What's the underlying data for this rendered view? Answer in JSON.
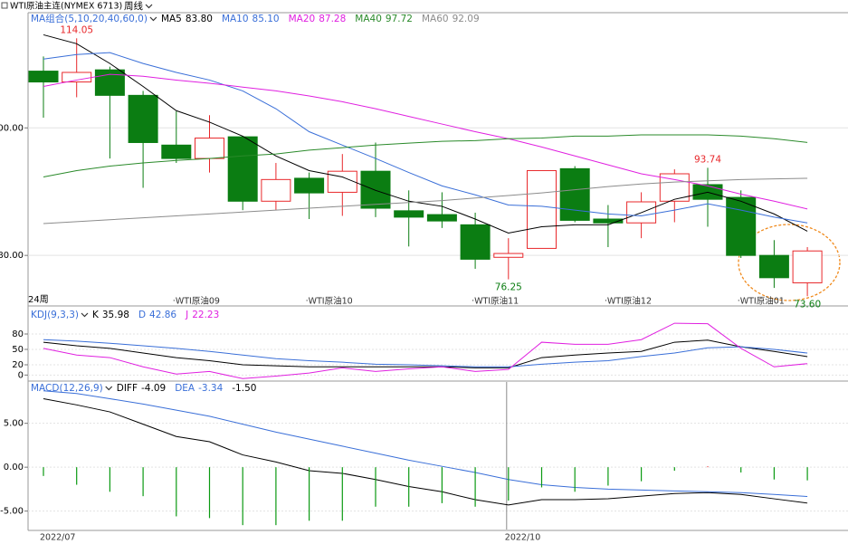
{
  "header": {
    "title": "WTI原油主连(NYMEX 6713)",
    "period": "周线"
  },
  "chart_data": [
    {
      "type": "candlestick",
      "legend_title": "MA组合(5,10,20,40,60,0)",
      "period_count": "24周",
      "categories": [
        null,
        null,
        null,
        null,
        "·WTI原油09",
        null,
        null,
        null,
        "·WTI原油10",
        null,
        null,
        null,
        null,
        "·WTI原油11",
        null,
        null,
        null,
        "·WTI原油12",
        null,
        null,
        null,
        "·WTI原油01",
        null,
        null
      ],
      "open": [
        108.9,
        107.2,
        109.1,
        105.1,
        97.3,
        95.2,
        98.6,
        88.5,
        92.1,
        89.9,
        93.2,
        87.0,
        86.4,
        84.8,
        79.7,
        81.1,
        93.6,
        85.7,
        85.1,
        88.5,
        91.1,
        89.1,
        80.0,
        75.7
      ],
      "high": [
        111.2,
        114.05,
        109.6,
        105.8,
        102.6,
        102.0,
        98.7,
        94.5,
        93.0,
        95.9,
        97.7,
        90.2,
        89.9,
        86.7,
        82.7,
        93.3,
        94.0,
        87.9,
        89.9,
        93.5,
        93.74,
        90.2,
        82.4,
        81.3
      ],
      "low": [
        101.6,
        104.8,
        95.2,
        90.6,
        94.5,
        93.0,
        87.1,
        87.1,
        85.7,
        86.2,
        86.0,
        81.4,
        84.3,
        77.9,
        76.25,
        81.1,
        85.2,
        81.3,
        82.7,
        85.2,
        84.5,
        79.6,
        74.9,
        73.6
      ],
      "close": [
        107.2,
        108.7,
        105.1,
        97.7,
        95.2,
        98.4,
        88.5,
        91.9,
        89.8,
        93.2,
        87.4,
        86.0,
        85.4,
        79.4,
        80.3,
        93.3,
        85.5,
        85.1,
        88.4,
        92.8,
        88.8,
        80.0,
        76.5,
        80.7
      ],
      "up_color": "#e8282b",
      "down_color": "#0b7d12",
      "ylim": [
        72.5,
        117.5
      ],
      "yticks": [
        {
          "value": 100,
          "label": "100.00"
        },
        {
          "value": 80,
          "label": "80.00"
        }
      ],
      "grid": true,
      "series": [
        {
          "name": "MA5",
          "legend_value": "83.80",
          "color": "#000000",
          "values": [
            114.6,
            113.2,
            110.1,
            106.5,
            102.7,
            100.9,
            98.7,
            95.6,
            93.3,
            92.3,
            90.2,
            88.5,
            87.7,
            85.7,
            83.5,
            84.5,
            84.8,
            84.8,
            86.7,
            88.8,
            89.9,
            88.5,
            86.5,
            83.8
          ]
        },
        {
          "name": "MA10",
          "legend_value": "85.10",
          "color": "#3a6fd8",
          "values": [
            110.8,
            111.5,
            111.8,
            110.1,
            108.7,
            107.5,
            105.8,
            103.0,
            99.4,
            97.3,
            95.2,
            93.0,
            90.9,
            89.5,
            87.9,
            87.7,
            87.1,
            86.5,
            86.2,
            87.1,
            88.1,
            87.1,
            86.0,
            85.1
          ]
        },
        {
          "name": "MA20",
          "legend_value": "87.28",
          "color": "#e020e0",
          "values": [
            106.5,
            107.5,
            108.4,
            108.1,
            107.5,
            107.0,
            106.4,
            105.8,
            105.0,
            104.1,
            103.0,
            101.8,
            100.6,
            99.4,
            98.3,
            97.0,
            95.6,
            94.2,
            92.8,
            91.9,
            90.9,
            89.6,
            88.5,
            87.28
          ]
        },
        {
          "name": "MA40",
          "legend_value": "97.72",
          "color": "#2a8a2a",
          "values": [
            92.3,
            93.3,
            94.0,
            94.5,
            94.9,
            95.2,
            95.6,
            95.9,
            96.5,
            96.9,
            97.3,
            97.6,
            97.9,
            98.0,
            98.3,
            98.4,
            98.7,
            98.7,
            98.9,
            98.9,
            98.9,
            98.7,
            98.3,
            97.72
          ]
        },
        {
          "name": "MA60",
          "legend_value": "92.09",
          "color": "#8c8c8c",
          "values": [
            85.0,
            85.3,
            85.6,
            85.9,
            86.2,
            86.5,
            86.8,
            87.1,
            87.4,
            87.7,
            88.0,
            88.3,
            88.6,
            89.0,
            89.4,
            89.8,
            90.3,
            90.8,
            91.2,
            91.5,
            91.7,
            91.9,
            92.0,
            92.09
          ]
        }
      ],
      "annotations": [
        {
          "label": "114.05",
          "index": 1,
          "at": "high",
          "color": "#e8282b"
        },
        {
          "label": "76.25",
          "index": 14,
          "at": "low",
          "color": "#0b7d12"
        },
        {
          "label": "93.74",
          "index": 20,
          "at": "high",
          "color": "#e8282b"
        },
        {
          "label": "73.60",
          "index": 23,
          "at": "low",
          "color": "#0b7d12"
        }
      ]
    },
    {
      "type": "line",
      "legend_title": "KDJ(9,3,3)",
      "ylim": [
        -10,
        110
      ],
      "yticks": [
        80,
        50,
        20,
        0
      ],
      "grid": true,
      "series": [
        {
          "name": "K",
          "legend_value": "35.98",
          "color": "#000000",
          "values": [
            64,
            57,
            52,
            43,
            34,
            28,
            20,
            18,
            16,
            16,
            16,
            16,
            16,
            14,
            14,
            34,
            39,
            43,
            46,
            64,
            68,
            55,
            46,
            35.98
          ]
        },
        {
          "name": "D",
          "legend_value": "42.86",
          "color": "#3a6fd8",
          "values": [
            69,
            66,
            62,
            57,
            52,
            46,
            39,
            32,
            28,
            25,
            21,
            20,
            18,
            16,
            16,
            21,
            25,
            28,
            36,
            43,
            53,
            55,
            50,
            42.86
          ]
        },
        {
          "name": "J",
          "legend_value": "22.23",
          "color": "#e020e0",
          "values": [
            52,
            39,
            34,
            16,
            2,
            7,
            -7,
            -2,
            4,
            14,
            7,
            12,
            16,
            7,
            11,
            64,
            60,
            60,
            69,
            101,
            100,
            52,
            16,
            22.23
          ]
        }
      ]
    },
    {
      "type": "line",
      "legend_title": "MACD(12,26,9)",
      "categories": [
        "2022/07",
        null,
        null,
        null,
        null,
        null,
        null,
        null,
        null,
        null,
        null,
        null,
        null,
        null,
        "2022/10",
        null,
        null,
        null,
        null,
        null,
        null,
        null,
        null,
        null
      ],
      "ylim": [
        -7.1,
        9.4
      ],
      "yticks": [
        {
          "value": 5,
          "label": "5.00"
        },
        {
          "value": 0,
          "label": "0.00"
        },
        {
          "value": -5,
          "label": "-5.00"
        }
      ],
      "grid": true,
      "series": [
        {
          "name": "DIFF",
          "legend_value": "-4.09",
          "color": "#000000",
          "values": [
            7.8,
            7.1,
            6.3,
            4.9,
            3.5,
            2.9,
            1.4,
            0.6,
            -0.4,
            -0.7,
            -1.4,
            -2.2,
            -2.8,
            -3.7,
            -4.3,
            -3.7,
            -3.7,
            -3.6,
            -3.3,
            -3.0,
            -2.9,
            -3.1,
            -3.6,
            -4.09
          ]
        },
        {
          "name": "DEA",
          "legend_value": "-3.34",
          "color": "#3a6fd8",
          "values": [
            8.7,
            8.4,
            7.8,
            7.2,
            6.5,
            5.8,
            4.9,
            4.0,
            3.2,
            2.4,
            1.6,
            0.8,
            0.1,
            -0.6,
            -1.4,
            -2.0,
            -2.3,
            -2.5,
            -2.6,
            -2.7,
            -2.8,
            -2.9,
            -3.1,
            -3.34
          ]
        },
        {
          "kind": "bar",
          "legend_value": "-1.50",
          "color": "#0b9a12",
          "values": [
            -1.0,
            -2.0,
            -2.8,
            -3.3,
            -5.6,
            -5.8,
            -6.6,
            -6.6,
            -6.1,
            -6.1,
            -4.5,
            -4.5,
            -4.1,
            -4.5,
            -3.8,
            -2.3,
            -2.8,
            -2.1,
            -1.6,
            -0.4,
            0.1,
            -0.6,
            -1.4,
            -1.5
          ]
        }
      ]
    }
  ]
}
